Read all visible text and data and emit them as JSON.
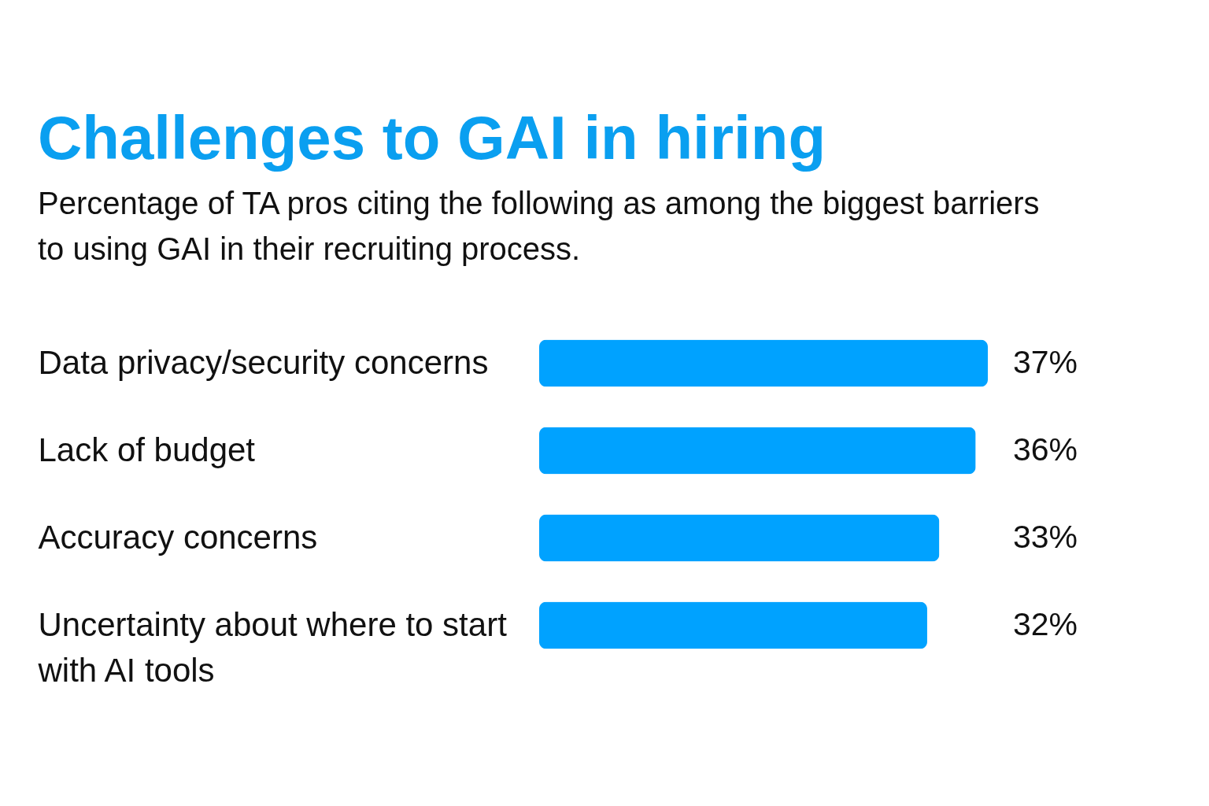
{
  "chart_data": {
    "type": "bar",
    "orientation": "horizontal",
    "title": "Challenges to GAI in hiring",
    "subtitle": "Percentage of TA pros citing the following as among the biggest barriers to using GAI in their recruiting process.",
    "categories": [
      "Data privacy/security concerns",
      "Lack of budget",
      "Accuracy concerns",
      "Uncertainty about where to start with AI tools"
    ],
    "values": [
      37,
      36,
      33,
      32
    ],
    "value_labels": [
      "37%",
      "36%",
      "33%",
      "32%"
    ],
    "color": "#00a2ff",
    "tick_labels": "y"
  }
}
